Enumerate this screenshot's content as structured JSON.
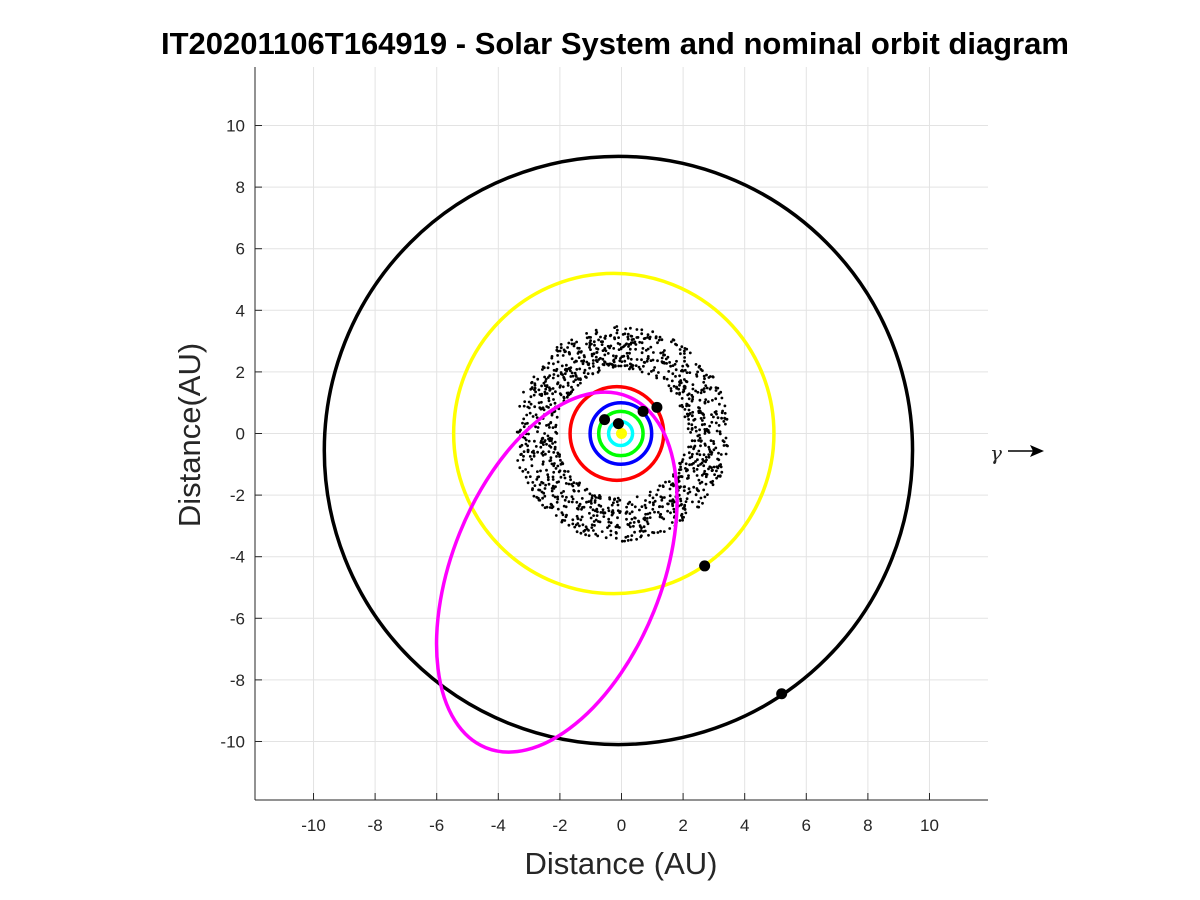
{
  "chart_data": {
    "type": "orbit-diagram",
    "title": "IT20201106T164919 - Solar System and nominal orbit diagram",
    "xlabel": "Distance (AU)",
    "ylabel": "Distance(AU)",
    "xlim": [
      -11.9,
      11.9
    ],
    "ylim": [
      -11.9,
      11.9
    ],
    "xticks": [
      -10,
      -8,
      -6,
      -4,
      -2,
      0,
      2,
      4,
      6,
      8,
      10
    ],
    "yticks": [
      -10,
      -8,
      -6,
      -4,
      -2,
      0,
      2,
      4,
      6,
      8,
      10
    ],
    "grid": true,
    "direction_marker": "γ",
    "orbits": [
      {
        "color": "#00ffff",
        "cx": -0.03,
        "cy": 0.0,
        "rx": 0.39,
        "ry": 0.39
      },
      {
        "color": "#00ff00",
        "cx": -0.02,
        "cy": 0.0,
        "rx": 0.72,
        "ry": 0.72
      },
      {
        "color": "#0000ff",
        "cx": -0.02,
        "cy": 0.0,
        "rx": 1.0,
        "ry": 1.0
      },
      {
        "color": "#ff0000",
        "cx": -0.15,
        "cy": 0.0,
        "rx": 1.52,
        "ry": 1.52
      },
      {
        "color": "#ffff00",
        "cx": -0.25,
        "cy": 0.0,
        "rx": 5.2,
        "ry": 5.2
      },
      {
        "color": "#000000",
        "cx": -0.1,
        "cy": -0.55,
        "rx": 9.55,
        "ry": 9.55
      },
      {
        "color": "#ff00ff",
        "cx": -2.1,
        "cy": -4.5,
        "rx": 3.4,
        "ry": 6.15,
        "rotation_deg": 22
      }
    ],
    "planets": [
      {
        "x": -0.55,
        "y": 0.45
      },
      {
        "x": -0.1,
        "y": 0.32
      },
      {
        "x": 0.7,
        "y": 0.72
      },
      {
        "x": 1.15,
        "y": 0.85
      },
      {
        "x": 2.7,
        "y": -4.3
      },
      {
        "x": 5.2,
        "y": -8.45
      }
    ],
    "sun": {
      "x": 0.0,
      "y": 0.0,
      "color": "#ffff00"
    },
    "asteroid_belt": {
      "count": 1200,
      "r_min": 2.1,
      "r_max": 3.5,
      "color": "#000000"
    }
  }
}
